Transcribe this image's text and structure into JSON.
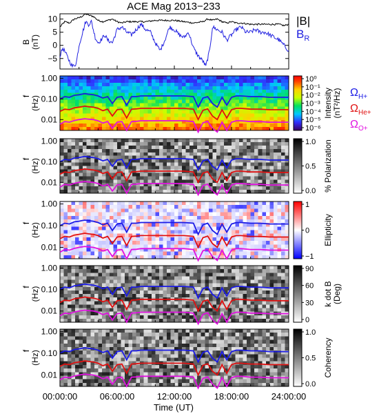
{
  "title": "ACE Mag 2013−233",
  "time_axis": {
    "label": "Time (UT)",
    "ticks": [
      "00:00:00",
      "06:00:00",
      "12:00:00",
      "18:00:00",
      "24:00:00"
    ],
    "range_hours": [
      0,
      24
    ]
  },
  "legend_B": {
    "total": "|B|",
    "radial": "B",
    "radial_sub": "R",
    "total_color": "#000000",
    "radial_color": "#2020e0"
  },
  "gyro_legend": [
    {
      "sym": "Ω",
      "sub": "H+",
      "color": "#1a1ae6"
    },
    {
      "sym": "Ω",
      "sub": "He+",
      "color": "#e01010"
    },
    {
      "sym": "Ω",
      "sub": "O+",
      "color": "#e010e0"
    }
  ],
  "freq_axis": {
    "label_f": "f",
    "label_unit": "(Hz)",
    "ticks": [
      "1.00",
      "0.10",
      "0.01"
    ]
  },
  "colorbars": [
    {
      "label": "Intensity",
      "unit": "(nT²/Hz)",
      "ticks": [
        "10⁰",
        "10⁻¹",
        "10⁻²",
        "10⁻³",
        "10⁻⁴",
        "10⁻⁵",
        "10⁻⁶"
      ]
    },
    {
      "label": "% Polarization",
      "unit": "",
      "ticks": [
        "1.0",
        "0.5",
        "0.0"
      ]
    },
    {
      "label": "Ellipticity",
      "unit": "",
      "ticks": [
        "1",
        "0",
        "−1"
      ]
    },
    {
      "label": "k dot B",
      "unit": "(Deg)",
      "ticks": [
        "90",
        "60",
        "30",
        "0"
      ]
    },
    {
      "label": "Coherency",
      "unit": "",
      "ticks": [
        "1.0",
        "0.5",
        "0.0"
      ]
    }
  ],
  "chart_data": {
    "type": "line",
    "title": "ACE Mag 2013−233",
    "panel_B": {
      "ylabel": "B",
      "yunit": "(nT)",
      "yticks": [
        10,
        5,
        0,
        -5
      ],
      "ylim": [
        -9,
        12
      ],
      "series": [
        {
          "name": "|B|",
          "hours": [
            0,
            0.5,
            1,
            1.5,
            2,
            2.3,
            2.7,
            3,
            3.5,
            4,
            4.5,
            5,
            5.5,
            6,
            6.5,
            7,
            8,
            9,
            10,
            11,
            12,
            13,
            14,
            15,
            15.5,
            16,
            16.5,
            17,
            17.5,
            18,
            18.5,
            19,
            20,
            21,
            22,
            23,
            23.5,
            24
          ],
          "values": [
            7,
            9,
            8.5,
            10,
            10.5,
            11,
            12,
            11.5,
            11,
            9.5,
            9,
            9.5,
            10,
            9,
            8.5,
            9,
            9,
            9,
            9.5,
            9.5,
            9.5,
            9,
            8.5,
            9,
            10,
            9.5,
            10,
            9,
            8.5,
            9,
            8.5,
            8.5,
            8,
            8,
            8,
            8,
            7.5,
            8
          ]
        },
        {
          "name": "B",
          "hours": [
            0,
            0.3,
            0.6,
            1,
            1.3,
            1.7,
            2,
            2.3,
            2.7,
            3,
            3.3,
            3.7,
            4,
            4.3,
            4.7,
            5,
            5.5,
            6,
            6.5,
            7,
            7.5,
            8,
            8.5,
            9,
            9.5,
            10,
            10.5,
            11,
            11.5,
            12,
            12.5,
            13,
            13.5,
            14,
            14.5,
            15,
            15.3,
            15.7,
            16,
            16.5,
            17,
            17.5,
            18,
            18.5,
            19,
            19.5,
            20,
            20.5,
            21,
            21.5,
            22,
            22.5,
            23,
            23.5,
            24
          ],
          "values": [
            -4,
            -1,
            -3,
            -6,
            -8,
            -7,
            0,
            4,
            9,
            8,
            9,
            3,
            1,
            2,
            4,
            2,
            1,
            6,
            7,
            5,
            4,
            6,
            8,
            6,
            5,
            1,
            -2,
            2,
            7,
            6,
            4,
            3,
            5,
            -1,
            -4,
            -6,
            -8,
            -2,
            7,
            6,
            5,
            2,
            4,
            6,
            7,
            5,
            5,
            6,
            5,
            5,
            4,
            3,
            2,
            0,
            -2
          ]
        }
      ]
    },
    "spectrogram_panels": {
      "ylim_hz": [
        0.003,
        1.3
      ],
      "yscale": "log",
      "gyro_lines": [
        {
          "name": "ΩH+",
          "hours": [
            0,
            0.5,
            1,
            1.5,
            2,
            2.3,
            2.6,
            3,
            3.5,
            4,
            4.5,
            5,
            5.5,
            6,
            6.5,
            7,
            7.5,
            8,
            8.5,
            9,
            10,
            11,
            12,
            13,
            14,
            14.5,
            15,
            15.5,
            16,
            16.5,
            17,
            17.5,
            18,
            18.5,
            19,
            20,
            21,
            22,
            23,
            24
          ],
          "values": [
            0.1,
            0.13,
            0.12,
            0.15,
            0.16,
            0.17,
            0.18,
            0.17,
            0.16,
            0.14,
            0.11,
            0.13,
            0.06,
            0.12,
            0.13,
            0.05,
            0.13,
            0.13,
            0.14,
            0.14,
            0.14,
            0.14,
            0.14,
            0.14,
            0.13,
            0.04,
            0.11,
            0.13,
            0.06,
            0.04,
            0.12,
            0.05,
            0.12,
            0.14,
            0.14,
            0.13,
            0.13,
            0.12,
            0.12,
            0.12
          ]
        },
        {
          "name": "ΩHe+",
          "hours": [
            0,
            0.5,
            1,
            1.5,
            2,
            2.3,
            2.6,
            3,
            3.5,
            4,
            4.5,
            5,
            5.5,
            6,
            6.5,
            7,
            7.5,
            8,
            8.5,
            9,
            10,
            11,
            12,
            13,
            14,
            14.5,
            15,
            15.5,
            16,
            16.5,
            17,
            17.5,
            18,
            18.5,
            19,
            20,
            21,
            22,
            23,
            24
          ],
          "values": [
            0.025,
            0.032,
            0.03,
            0.037,
            0.04,
            0.042,
            0.045,
            0.042,
            0.04,
            0.035,
            0.027,
            0.032,
            0.015,
            0.03,
            0.032,
            0.012,
            0.032,
            0.033,
            0.035,
            0.035,
            0.035,
            0.035,
            0.035,
            0.035,
            0.032,
            0.01,
            0.028,
            0.033,
            0.015,
            0.01,
            0.03,
            0.012,
            0.03,
            0.035,
            0.035,
            0.032,
            0.032,
            0.03,
            0.03,
            0.03
          ]
        },
        {
          "name": "ΩO+",
          "hours": [
            0,
            0.5,
            1,
            1.5,
            2,
            2.3,
            2.6,
            3,
            3.5,
            4,
            4.5,
            5,
            5.5,
            6,
            6.5,
            7,
            7.5,
            8,
            8.5,
            9,
            10,
            11,
            12,
            13,
            14,
            14.5,
            15,
            15.5,
            16,
            16.5,
            17,
            17.5,
            18,
            18.5,
            19,
            20,
            21,
            22,
            23,
            24
          ],
          "values": [
            0.006,
            0.008,
            0.0075,
            0.009,
            0.01,
            0.0105,
            0.011,
            0.0105,
            0.01,
            0.0088,
            0.0068,
            0.008,
            0.0038,
            0.0075,
            0.008,
            0.003,
            0.008,
            0.0082,
            0.0088,
            0.0088,
            0.0088,
            0.0088,
            0.0088,
            0.0088,
            0.008,
            0.0025,
            0.007,
            0.0082,
            0.0038,
            0.0025,
            0.0075,
            0.003,
            0.0075,
            0.0088,
            0.0088,
            0.008,
            0.008,
            0.0075,
            0.0075,
            0.0075
          ]
        }
      ]
    }
  }
}
